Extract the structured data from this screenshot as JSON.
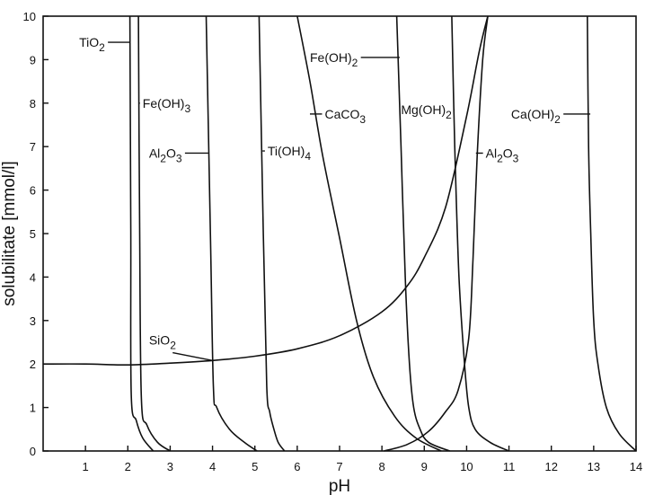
{
  "chart_data": {
    "type": "line",
    "xlabel": "pH",
    "ylabel": "solubilitate [mmol/l]",
    "xlim": [
      0,
      14
    ],
    "ylim": [
      0,
      10
    ],
    "xticks": [
      "1",
      "2",
      "3",
      "4",
      "5",
      "6",
      "7",
      "8",
      "9",
      "10",
      "11",
      "12",
      "13",
      "14"
    ],
    "yticks": [
      "0",
      "1",
      "2",
      "3",
      "4",
      "5",
      "6",
      "7",
      "8",
      "9",
      "10"
    ],
    "grid": false,
    "series": [
      {
        "name": "TiO2",
        "key": "tio2",
        "points": [
          [
            2.05,
            10
          ],
          [
            2.07,
            5
          ],
          [
            2.08,
            1.3
          ],
          [
            2.2,
            0.7
          ],
          [
            2.35,
            0.3
          ],
          [
            2.6,
            0
          ]
        ]
      },
      {
        "name": "Fe(OH)3",
        "key": "feoh3",
        "points": [
          [
            2.25,
            10
          ],
          [
            2.28,
            5
          ],
          [
            2.32,
            1.2
          ],
          [
            2.45,
            0.6
          ],
          [
            2.7,
            0.2
          ],
          [
            3.0,
            0
          ]
        ]
      },
      {
        "name": "Al2O3",
        "key": "al2o3-left",
        "points": [
          [
            3.85,
            10
          ],
          [
            3.95,
            5
          ],
          [
            4.02,
            1.5
          ],
          [
            4.1,
            1.0
          ],
          [
            4.4,
            0.5
          ],
          [
            4.75,
            0.2
          ],
          [
            5.05,
            0
          ]
        ]
      },
      {
        "name": "Ti(OH)4",
        "key": "tioh4",
        "points": [
          [
            5.1,
            10
          ],
          [
            5.2,
            5
          ],
          [
            5.28,
            1.5
          ],
          [
            5.35,
            0.9
          ],
          [
            5.45,
            0.5
          ],
          [
            5.55,
            0.2
          ],
          [
            5.7,
            0
          ]
        ]
      },
      {
        "name": "CaCO3",
        "key": "caco3",
        "points": [
          [
            6.0,
            10
          ],
          [
            6.3,
            8.5
          ],
          [
            6.6,
            6.8
          ],
          [
            7.0,
            4.9
          ],
          [
            7.4,
            3.0
          ],
          [
            7.8,
            1.7
          ],
          [
            8.3,
            0.8
          ],
          [
            8.8,
            0.3
          ],
          [
            9.4,
            0
          ]
        ]
      },
      {
        "name": "Fe(OH)2",
        "key": "feoh2",
        "points": [
          [
            8.35,
            10
          ],
          [
            8.45,
            7
          ],
          [
            8.55,
            4
          ],
          [
            8.65,
            2
          ],
          [
            8.75,
            1
          ],
          [
            8.9,
            0.5
          ],
          [
            9.1,
            0.2
          ],
          [
            9.6,
            0
          ]
        ]
      },
      {
        "name": "Mg(OH)2",
        "key": "mgoh2",
        "points": [
          [
            9.65,
            10
          ],
          [
            9.72,
            7
          ],
          [
            9.82,
            4
          ],
          [
            9.95,
            2
          ],
          [
            10.05,
            1
          ],
          [
            10.2,
            0.5
          ],
          [
            10.55,
            0.2
          ],
          [
            11.0,
            0
          ]
        ]
      },
      {
        "name": "Al2O3",
        "key": "al2o3-right",
        "points": [
          [
            8.05,
            0
          ],
          [
            8.6,
            0.15
          ],
          [
            9.1,
            0.45
          ],
          [
            9.5,
            0.9
          ],
          [
            9.8,
            1.4
          ],
          [
            10.05,
            2.6
          ],
          [
            10.15,
            4.4
          ],
          [
            10.25,
            6.8
          ],
          [
            10.38,
            9.0
          ],
          [
            10.5,
            10
          ]
        ]
      },
      {
        "name": "Ca(OH)2",
        "key": "caoh2",
        "points": [
          [
            12.85,
            10
          ],
          [
            12.88,
            7
          ],
          [
            12.93,
            5
          ],
          [
            13.0,
            3
          ],
          [
            13.1,
            2
          ],
          [
            13.3,
            1
          ],
          [
            13.6,
            0.4
          ],
          [
            14.0,
            0
          ]
        ]
      },
      {
        "name": "SiO2",
        "key": "sio2",
        "points": [
          [
            0,
            2.0
          ],
          [
            1,
            2.0
          ],
          [
            2,
            1.98
          ],
          [
            3,
            2.02
          ],
          [
            4,
            2.08
          ],
          [
            5,
            2.18
          ],
          [
            6,
            2.35
          ],
          [
            7,
            2.65
          ],
          [
            8,
            3.2
          ],
          [
            8.6,
            3.8
          ],
          [
            9.0,
            4.45
          ],
          [
            9.5,
            5.6
          ],
          [
            10.0,
            7.7
          ],
          [
            10.3,
            9.2
          ],
          [
            10.5,
            10
          ]
        ]
      }
    ],
    "labels": [
      {
        "series": "tio2",
        "text_base": "TiO",
        "text_sub": "2",
        "label_at": [
          0.85,
          9.4
        ],
        "anchor": [
          2.05,
          9.4
        ],
        "leader": "h"
      },
      {
        "series": "feoh3",
        "text_base": "Fe(OH)",
        "text_sub": "3",
        "label_at": [
          2.35,
          8.0
        ],
        "anchor": [
          2.27,
          8.0
        ],
        "leader": "h"
      },
      {
        "series": "al2o3-left",
        "text_base": "Al",
        "text_sub": "2",
        "text_mid": "O",
        "text_sub2": "3",
        "label_at": [
          2.5,
          6.85
        ],
        "anchor": [
          3.9,
          6.85
        ],
        "leader": "h"
      },
      {
        "series": "tioh4",
        "text_base": "Ti(OH)",
        "text_sub": "4",
        "label_at": [
          5.3,
          6.9
        ],
        "anchor": [
          5.18,
          6.9
        ],
        "leader": "h"
      },
      {
        "series": "caco3",
        "text_base": "CaCO",
        "text_sub": "3",
        "label_at": [
          6.65,
          7.75
        ],
        "anchor": [
          6.3,
          7.75
        ],
        "leader": "h"
      },
      {
        "series": "feoh2",
        "text_base": "Fe(OH)",
        "text_sub": "2",
        "label_at": [
          6.3,
          9.05
        ],
        "anchor": [
          8.42,
          9.05
        ],
        "leader": "h"
      },
      {
        "series": "mgoh2",
        "text_base": "Mg(OH)",
        "text_sub": "2",
        "label_at": [
          8.45,
          7.85
        ],
        "anchor": [
          9.72,
          7.85
        ],
        "leader": "h"
      },
      {
        "series": "al2o3-right",
        "text_base": "Al",
        "text_sub": "2",
        "text_mid": "O",
        "text_sub2": "3",
        "label_at": [
          10.45,
          6.85
        ],
        "anchor": [
          10.22,
          6.85
        ],
        "leader": "h"
      },
      {
        "series": "caoh2",
        "text_base": "Ca(OH)",
        "text_sub": "2",
        "label_at": [
          11.05,
          7.75
        ],
        "anchor": [
          12.92,
          7.75
        ],
        "leader": "h"
      },
      {
        "series": "sio2",
        "text_base": "SiO",
        "text_sub": "2",
        "label_at": [
          2.5,
          2.55
        ],
        "anchor": [
          4.0,
          2.08
        ],
        "leader": "d"
      }
    ]
  }
}
